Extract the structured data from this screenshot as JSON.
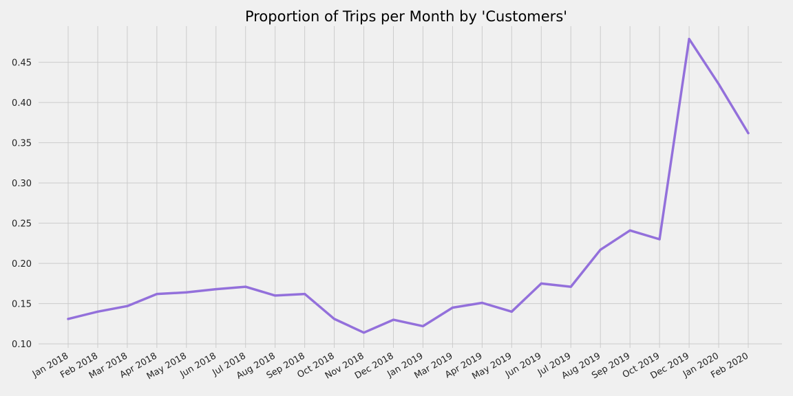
{
  "chart_data": {
    "type": "line",
    "title": "Proportion of Trips per Month by 'Customers'",
    "xlabel": "",
    "ylabel": "",
    "categories": [
      "Jan 2018",
      "Feb 2018",
      "Mar 2018",
      "Apr 2018",
      "May 2018",
      "Jun 2018",
      "Jul 2018",
      "Aug 2018",
      "Sep 2018",
      "Oct 2018",
      "Nov 2018",
      "Dec 2018",
      "Jan 2019",
      "Mar 2019",
      "Apr 2019",
      "May 2019",
      "Jun 2019",
      "Jul 2019",
      "Aug 2019",
      "Sep 2019",
      "Oct 2019",
      "Dec 2019",
      "Jan 2020",
      "Feb 2020"
    ],
    "series": [
      {
        "values": [
          0.131,
          0.14,
          0.147,
          0.162,
          0.164,
          0.168,
          0.171,
          0.16,
          0.162,
          0.131,
          0.114,
          0.13,
          0.122,
          0.145,
          0.151,
          0.14,
          0.175,
          0.171,
          0.217,
          0.241,
          0.23,
          0.479,
          0.423,
          0.362
        ],
        "color": "#9370db"
      }
    ],
    "yticks": [
      "0.10",
      "0.15",
      "0.20",
      "0.25",
      "0.30",
      "0.35",
      "0.40",
      "0.45"
    ],
    "ylim": [
      0.095,
      0.495
    ],
    "grid": true,
    "legend": "none"
  }
}
